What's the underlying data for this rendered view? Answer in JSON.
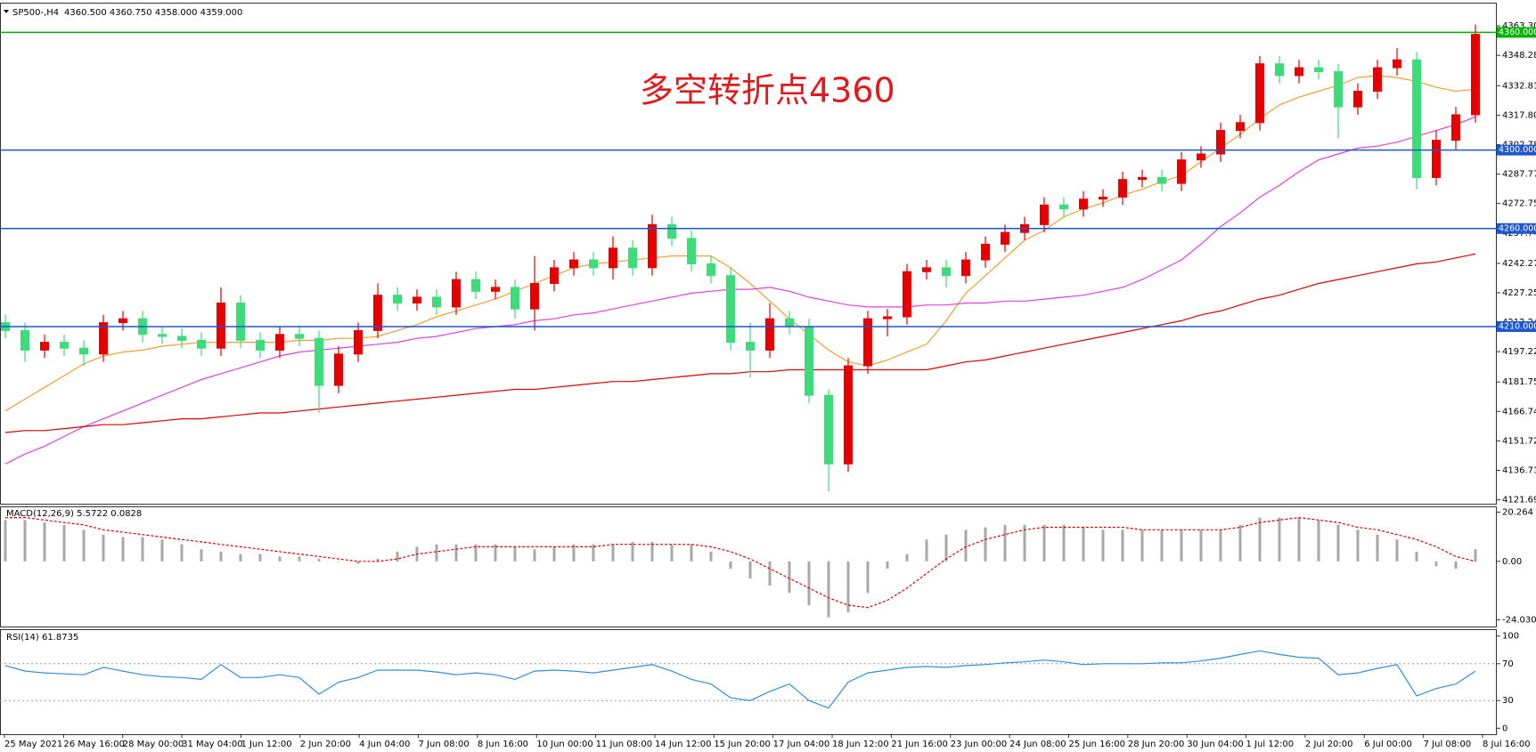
{
  "header": {
    "symbol": "SP500-,H4",
    "quote": "4360.500 4360.750 4358.000 4359.000"
  },
  "chart_data": [
    {
      "type": "candlestick",
      "annotation": "多空转折点4360",
      "up_color": "#e60000",
      "down_color": "#3ddc7a",
      "ylim": [
        4119.7,
        4374.7
      ],
      "yticks": [
        4121.695,
        {
          "value": 4136.71,
          "label": "4136.710"
        },
        4151.725,
        {
          "value": 4166.74,
          "label": "4166.740"
        },
        4181.755,
        4197.225,
        {
          "value": 4212.24,
          "label": "4212.240"
        },
        4227.255,
        {
          "value": 4242.27,
          "label": "4242.270"
        },
        {
          "value": 4257.74,
          "label": "4257.740"
        },
        4272.755,
        {
          "value": 4287.77,
          "label": "4287.770"
        },
        4302.785,
        {
          "value": 4317.8,
          "label": "4317.800"
        },
        4332.815,
        4348.285,
        {
          "value": 4363.3,
          "label": "4363.300"
        }
      ],
      "levels": [
        {
          "value": 4360,
          "label": "4360.000",
          "color": "#00b400"
        },
        {
          "value": 4300,
          "label": "4300.000",
          "color": "#1e56d0"
        },
        {
          "value": 4260,
          "label": "4260.000",
          "color": "#1e56d0"
        },
        {
          "value": 4210,
          "label": "4210.000",
          "color": "#1e56d0"
        }
      ],
      "open": [
        4212,
        4208,
        4198,
        4202,
        4199,
        4196,
        4212,
        4214,
        4206,
        4205,
        4203,
        4199,
        4222,
        4203,
        4198,
        4206,
        4204,
        4180,
        4196,
        4208,
        4226,
        4222,
        4225,
        4220,
        4234,
        4228,
        4230,
        4219,
        4232,
        4240,
        4244,
        4240,
        4250,
        4240,
        4262,
        4255,
        4242,
        4236,
        4202,
        4198,
        4214,
        4210,
        4175,
        4140,
        4190,
        4214,
        4215,
        4238,
        4240,
        4236,
        4244,
        4252,
        4258,
        4262,
        4272,
        4270,
        4275,
        4276,
        4285,
        4286,
        4283,
        4295,
        4298,
        4310,
        4314,
        4344,
        4338,
        4342,
        4340,
        4322,
        4330,
        4342,
        4346,
        4286,
        4305,
        4318
      ],
      "high": [
        4216,
        4212,
        4206,
        4206,
        4203,
        4216,
        4218,
        4218,
        4210,
        4209,
        4207,
        4230,
        4226,
        4207,
        4210,
        4210,
        4208,
        4200,
        4212,
        4232,
        4230,
        4229,
        4229,
        4238,
        4238,
        4234,
        4234,
        4246,
        4244,
        4248,
        4248,
        4256,
        4254,
        4267,
        4266,
        4259,
        4246,
        4240,
        4212,
        4222,
        4218,
        4214,
        4178,
        4194,
        4218,
        4219,
        4242,
        4244,
        4244,
        4248,
        4256,
        4262,
        4266,
        4276,
        4276,
        4279,
        4280,
        4289,
        4290,
        4290,
        4299,
        4302,
        4314,
        4318,
        4348,
        4348,
        4346,
        4346,
        4344,
        4334,
        4346,
        4352,
        4350,
        4310,
        4322,
        4364
      ],
      "low": [
        4204,
        4192,
        4194,
        4195,
        4190,
        4192,
        4208,
        4202,
        4201,
        4199,
        4195,
        4195,
        4199,
        4194,
        4194,
        4200,
        4166,
        4176,
        4192,
        4204,
        4218,
        4218,
        4216,
        4216,
        4224,
        4224,
        4214,
        4208,
        4228,
        4236,
        4236,
        4234,
        4236,
        4236,
        4251,
        4238,
        4232,
        4198,
        4184,
        4194,
        4206,
        4171,
        4126,
        4136,
        4186,
        4205,
        4211,
        4234,
        4230,
        4232,
        4240,
        4248,
        4254,
        4258,
        4266,
        4266,
        4271,
        4272,
        4281,
        4279,
        4279,
        4291,
        4294,
        4306,
        4310,
        4334,
        4334,
        4336,
        4306,
        4318,
        4326,
        4338,
        4280,
        4282,
        4300,
        4314
      ],
      "close": [
        4208,
        4198,
        4202,
        4199,
        4196,
        4212,
        4214,
        4206,
        4205,
        4203,
        4199,
        4222,
        4203,
        4198,
        4206,
        4204,
        4180,
        4196,
        4208,
        4226,
        4222,
        4225,
        4220,
        4234,
        4228,
        4230,
        4219,
        4232,
        4240,
        4244,
        4240,
        4250,
        4240,
        4262,
        4255,
        4242,
        4236,
        4202,
        4198,
        4214,
        4210,
        4175,
        4140,
        4190,
        4214,
        4215,
        4238,
        4240,
        4236,
        4244,
        4252,
        4258,
        4262,
        4272,
        4270,
        4275,
        4276,
        4285,
        4286,
        4283,
        4295,
        4298,
        4310,
        4314,
        4344,
        4338,
        4342,
        4340,
        4322,
        4330,
        4342,
        4346,
        4286,
        4305,
        4318,
        4359
      ],
      "series": [
        {
          "color": "#f0a030",
          "values": [
            4167,
            4173,
            4179,
            4185,
            4191,
            4195,
            4197,
            4198,
            4200,
            4201,
            4202,
            4202,
            4202,
            4202,
            4202,
            4203,
            4203,
            4204,
            4204,
            4205,
            4208,
            4211,
            4215,
            4218,
            4221,
            4224,
            4228,
            4232,
            4236,
            4240,
            4242,
            4243,
            4244,
            4245,
            4246,
            4246,
            4246,
            4240,
            4232,
            4223,
            4214,
            4206,
            4198,
            4192,
            4190,
            4193,
            4197,
            4201,
            4213,
            4227,
            4236,
            4245,
            4254,
            4259,
            4266,
            4270,
            4273,
            4277,
            4280,
            4284,
            4287,
            4294,
            4301,
            4308,
            4316,
            4323,
            4327,
            4330,
            4333,
            4337,
            4338,
            4337,
            4335,
            4332,
            4330,
            4331
          ]
        },
        {
          "color": "#e040e0",
          "values": [
            4140,
            4145,
            4149,
            4154,
            4159,
            4163,
            4167,
            4171,
            4175,
            4179,
            4183,
            4186,
            4189,
            4192,
            4195,
            4197,
            4198,
            4199,
            4200,
            4201,
            4202,
            4204,
            4205,
            4207,
            4209,
            4210,
            4211,
            4213,
            4214,
            4216,
            4217,
            4219,
            4221,
            4223,
            4225,
            4227,
            4228,
            4229,
            4229,
            4230,
            4228,
            4225,
            4223,
            4221,
            4220,
            4220,
            4220,
            4221,
            4221,
            4222,
            4222,
            4223,
            4223,
            4224,
            4225,
            4226,
            4228,
            4230,
            4234,
            4239,
            4244,
            4252,
            4261,
            4268,
            4276,
            4282,
            4289,
            4295,
            4298,
            4301,
            4302,
            4304,
            4307,
            4310,
            4313,
            4317
          ]
        },
        {
          "color": "#e00000",
          "values": [
            4156,
            4157,
            4157,
            4158,
            4159,
            4160,
            4160,
            4161,
            4162,
            4163,
            4163,
            4164,
            4165,
            4166,
            4166,
            4167,
            4168,
            4169,
            4170,
            4171,
            4172,
            4173,
            4174,
            4175,
            4176,
            4177,
            4178,
            4178,
            4179,
            4180,
            4181,
            4182,
            4182,
            4183,
            4184,
            4185,
            4186,
            4186,
            4187,
            4187,
            4188,
            4188,
            4188,
            4188,
            4188,
            4188,
            4188,
            4188,
            4190,
            4192,
            4193,
            4195,
            4197,
            4199,
            4201,
            4203,
            4205,
            4207,
            4209,
            4211,
            4213,
            4216,
            4218,
            4221,
            4224,
            4226,
            4229,
            4232,
            4234,
            4236,
            4238,
            4240,
            4242,
            4243,
            4245,
            4247
          ]
        }
      ]
    },
    {
      "type": "bar",
      "title": "MACD(12,26,9) 5.5722 0.0828",
      "color": "#a8a8a8",
      "signal_color": "#e00000",
      "ylim": [
        -26.8,
        22.25
      ],
      "yticks": [
        20.264,
        {
          "value": 0,
          "label": "0.00"
        },
        -24.0303
      ],
      "values": [
        17,
        17,
        16,
        15,
        13,
        11,
        10,
        10,
        9,
        7,
        5,
        4,
        3,
        3,
        2,
        2,
        1,
        0,
        -1,
        1,
        4,
        6,
        7,
        7,
        7,
        7,
        6,
        5,
        6,
        7,
        7,
        7,
        8,
        8,
        7,
        7,
        4,
        -3,
        -7,
        -10,
        -13,
        -18,
        -23,
        -21,
        -13,
        -3,
        3,
        9,
        11,
        13,
        14,
        15,
        15,
        15,
        15,
        14,
        13,
        13,
        13,
        13,
        13,
        13,
        13,
        15,
        18,
        18,
        18,
        17,
        15,
        13,
        11,
        9,
        4,
        -2,
        -3,
        5
      ],
      "signal": [
        18,
        18,
        17,
        16,
        15,
        13,
        12,
        11,
        10,
        9,
        8,
        7,
        6,
        5,
        4,
        3,
        2,
        1,
        0,
        0,
        1,
        3,
        4,
        5,
        6,
        6,
        6,
        6,
        6,
        6,
        6,
        7,
        7,
        7,
        7,
        7,
        6,
        4,
        1,
        -3,
        -7,
        -11,
        -15,
        -18,
        -19,
        -16,
        -11,
        -5,
        1,
        6,
        9,
        11,
        13,
        14,
        14,
        14,
        14,
        14,
        13,
        13,
        13,
        13,
        13,
        14,
        16,
        17,
        18,
        17,
        16,
        14,
        13,
        11,
        9,
        6,
        2,
        0
      ]
    },
    {
      "type": "line",
      "title": "RSI(14) 61.8735",
      "color": "#2f8fe0",
      "ylim": [
        -6.5,
        106.5
      ],
      "yticks": [
        100,
        70,
        30,
        0
      ],
      "levels": [
        70,
        30
      ],
      "values": [
        68,
        62,
        60,
        59,
        58,
        66,
        62,
        58,
        56,
        55,
        53,
        69,
        55,
        55,
        58,
        55,
        37,
        50,
        55,
        63,
        63,
        63,
        61,
        58,
        60,
        58,
        53,
        62,
        63,
        62,
        60,
        63,
        66,
        69,
        62,
        53,
        48,
        33,
        30,
        40,
        48,
        30,
        22,
        50,
        60,
        63,
        66,
        67,
        66,
        68,
        69,
        71,
        72,
        74,
        72,
        69,
        70,
        70,
        70,
        71,
        71,
        73,
        76,
        80,
        84,
        80,
        77,
        76,
        58,
        60,
        65,
        69,
        35,
        43,
        48,
        62
      ],
      "time_labels": [
        "25 May 2021",
        "26 May 16:00",
        "28 May 00:00",
        "31 May 04:00",
        "1 Jun 12:00",
        "2 Jun 20:00",
        "4 Jun 04:00",
        "7 Jun 08:00",
        "8 Jun 16:00",
        "10 Jun 00:00",
        "11 Jun 08:00",
        "14 Jun 12:00",
        "15 Jun 20:00",
        "17 Jun 04:00",
        "18 Jun 12:00",
        "21 Jun 16:00",
        "23 Jun 00:00",
        "24 Jun 08:00",
        "25 Jun 16:00",
        "28 Jun 20:00",
        "30 Jun 04:00",
        "1 Jul 12:00",
        "2 Jul 20:00",
        "6 Jul 00:00",
        "7 Jul 08:00",
        "8 Jul 16:00"
      ]
    }
  ]
}
